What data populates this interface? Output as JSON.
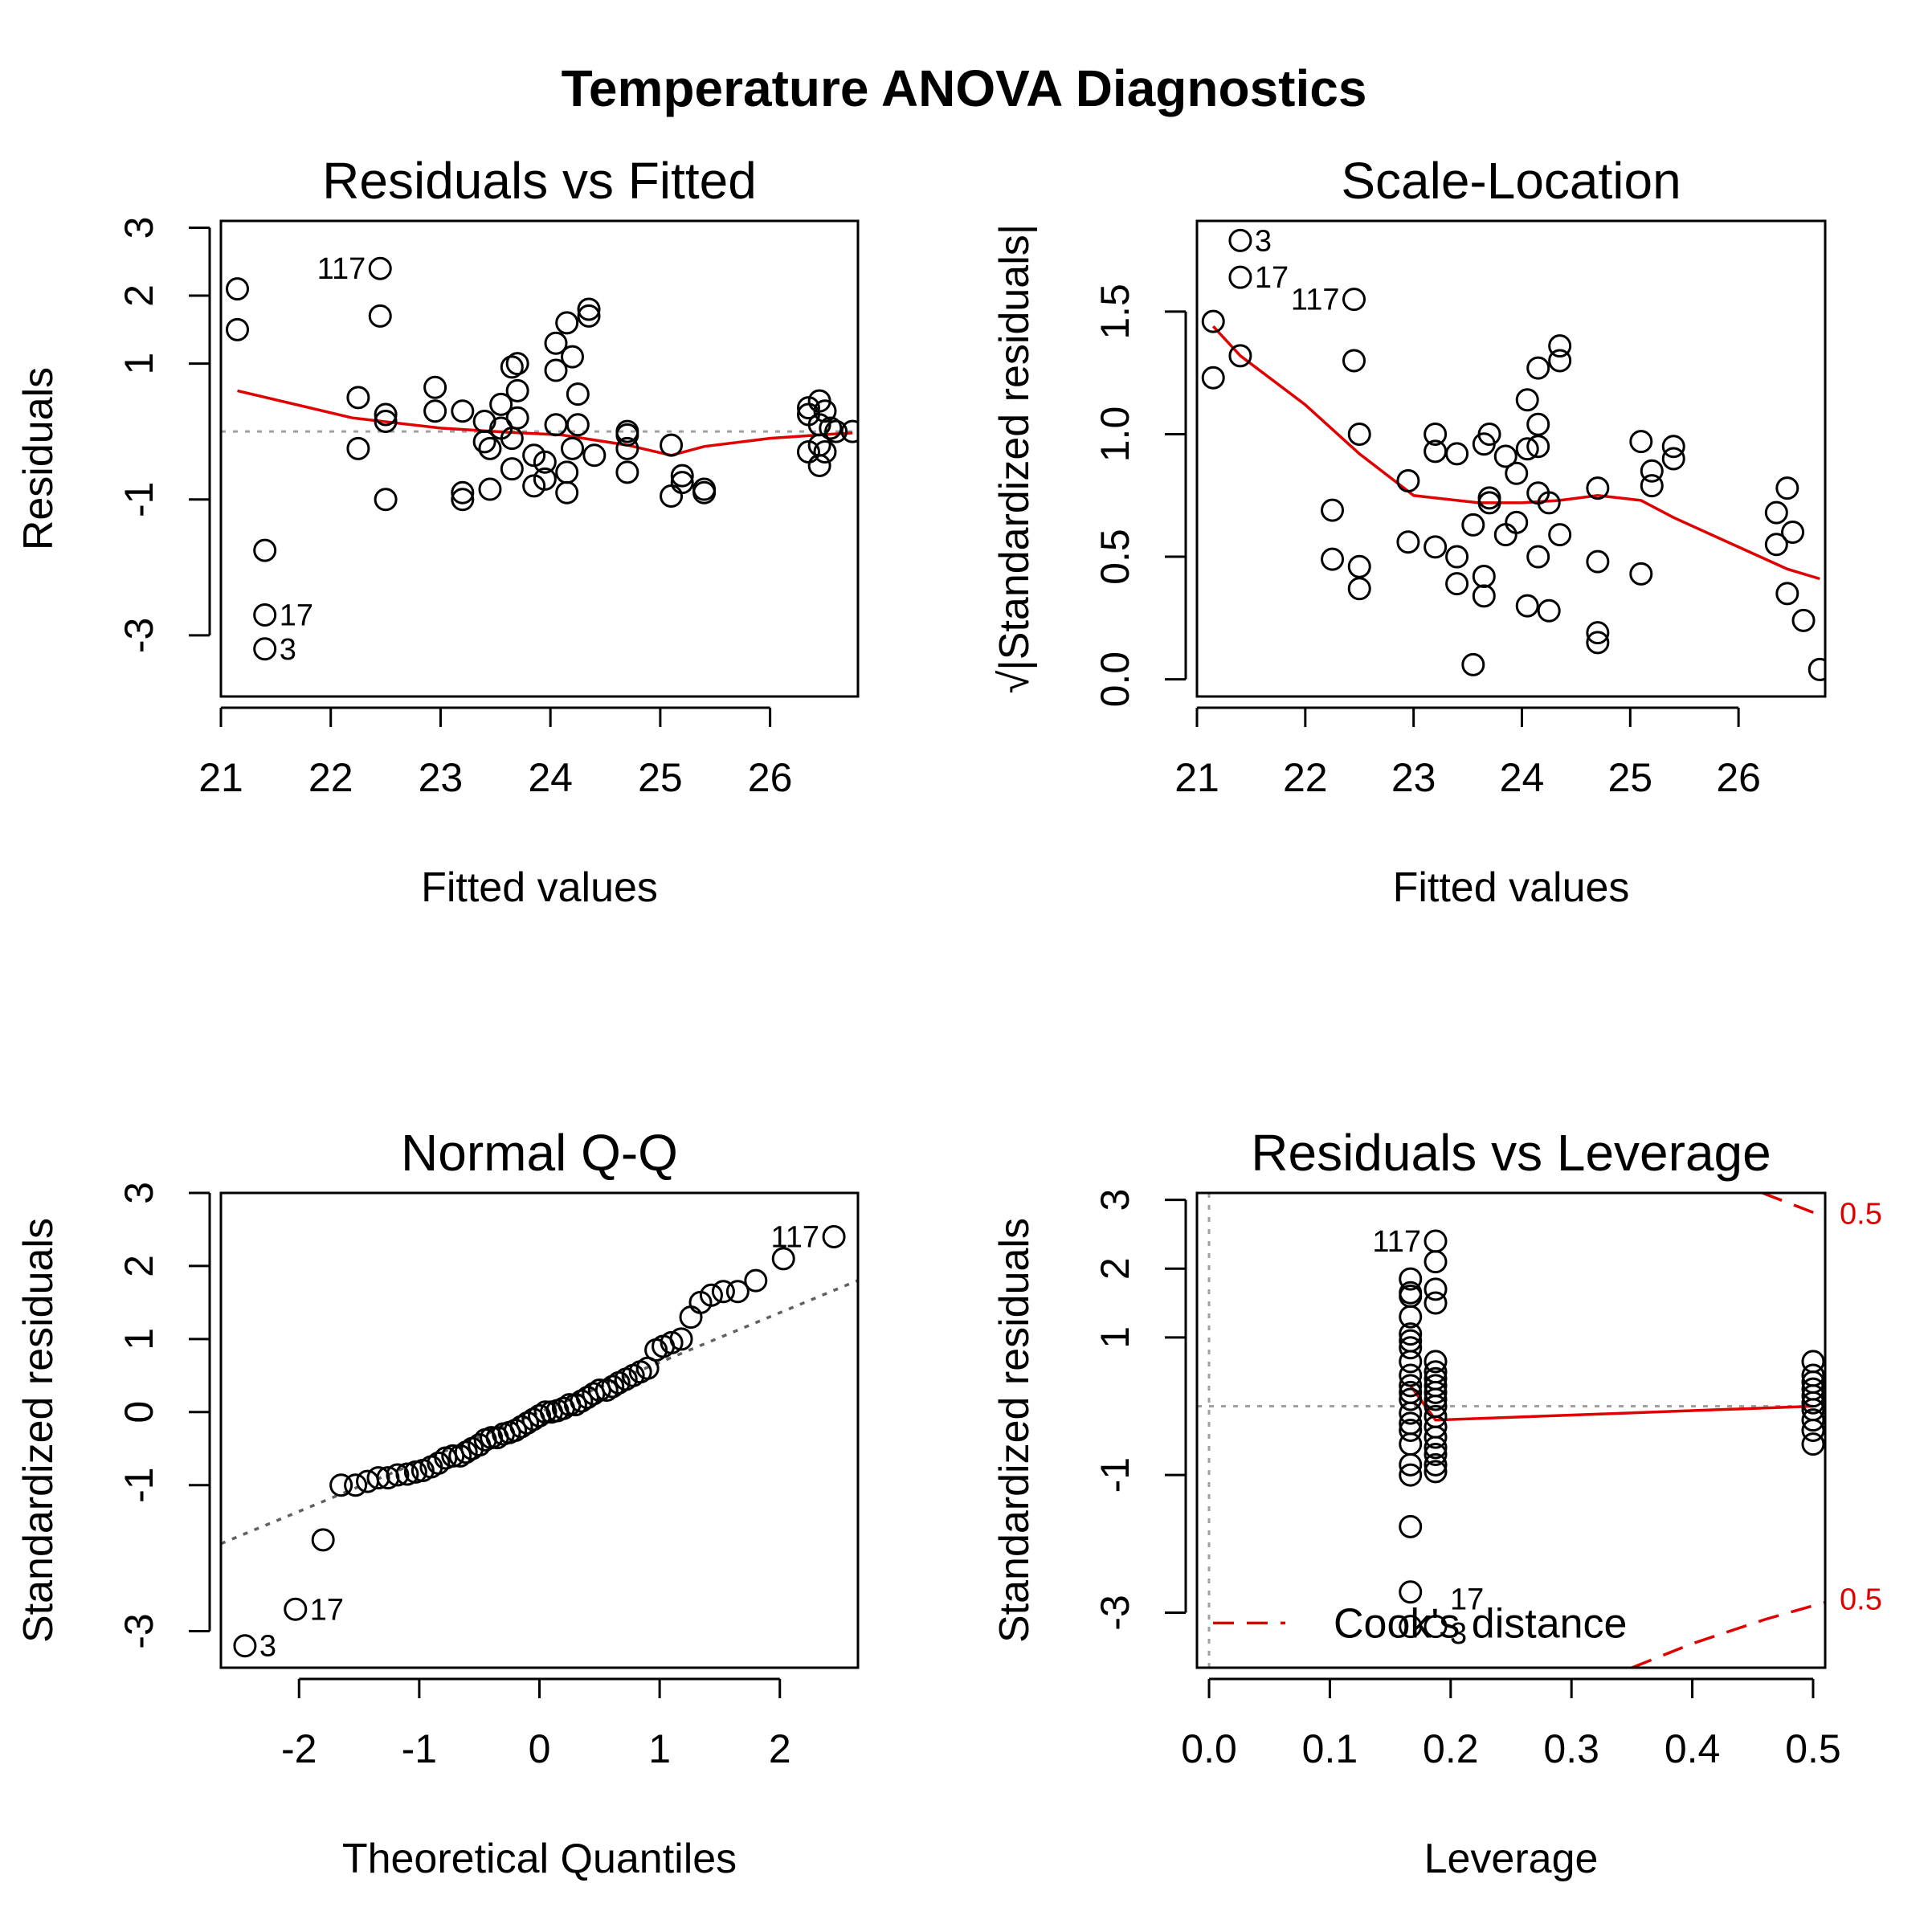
{
  "figure_title": "Temperature ANOVA Diagnostics",
  "colors": {
    "points": "#000000",
    "smoother": "#e00000",
    "reference": "#a0a0a0",
    "qq_line": "#606060",
    "cooks": "#e00000"
  },
  "chart_data": [
    {
      "id": "residuals-vs-fitted",
      "type": "scatter",
      "title": "Residuals vs Fitted",
      "xlabel": "Fitted values",
      "ylabel": "Residuals",
      "xlim": [
        21,
        26.8
      ],
      "ylim": [
        -3.9,
        3.1
      ],
      "xticks": [
        21,
        22,
        23,
        24,
        25,
        26
      ],
      "yticks": [
        -3,
        -1,
        1,
        2,
        3
      ],
      "reference_line": 0,
      "points": [
        [
          21.15,
          2.1
        ],
        [
          21.15,
          1.5
        ],
        [
          21.4,
          -1.75
        ],
        [
          21.4,
          -2.7
        ],
        [
          21.4,
          -3.2
        ],
        [
          22.45,
          2.4
        ],
        [
          22.45,
          1.7
        ],
        [
          22.25,
          0.5
        ],
        [
          22.25,
          -0.25
        ],
        [
          22.5,
          0.25
        ],
        [
          22.5,
          0.15
        ],
        [
          22.5,
          -1.0
        ],
        [
          22.95,
          0.65
        ],
        [
          22.95,
          0.3
        ],
        [
          23.2,
          0.3
        ],
        [
          23.2,
          -0.9
        ],
        [
          23.2,
          -1.0
        ],
        [
          23.4,
          0.15
        ],
        [
          23.4,
          -0.15
        ],
        [
          23.45,
          -0.25
        ],
        [
          23.45,
          -0.85
        ],
        [
          23.55,
          0.4
        ],
        [
          23.55,
          0.05
        ],
        [
          23.65,
          0.95
        ],
        [
          23.7,
          1.0
        ],
        [
          23.7,
          0.6
        ],
        [
          23.7,
          0.2
        ],
        [
          23.65,
          -0.1
        ],
        [
          23.65,
          -0.55
        ],
        [
          23.85,
          -0.35
        ],
        [
          23.85,
          -0.8
        ],
        [
          23.95,
          -0.45
        ],
        [
          23.95,
          -0.7
        ],
        [
          24.05,
          1.3
        ],
        [
          24.05,
          0.9
        ],
        [
          24.05,
          0.1
        ],
        [
          24.15,
          1.6
        ],
        [
          24.2,
          1.1
        ],
        [
          24.15,
          -0.6
        ],
        [
          24.15,
          -0.9
        ],
        [
          24.2,
          -0.25
        ],
        [
          24.25,
          0.55
        ],
        [
          24.25,
          0.1
        ],
        [
          24.35,
          1.8
        ],
        [
          24.35,
          1.7
        ],
        [
          24.4,
          -0.35
        ],
        [
          24.7,
          0.0
        ],
        [
          24.7,
          -0.05
        ],
        [
          24.7,
          -0.25
        ],
        [
          24.7,
          -0.6
        ],
        [
          25.1,
          -0.2
        ],
        [
          25.1,
          -0.95
        ],
        [
          25.2,
          -0.65
        ],
        [
          25.2,
          -0.75
        ],
        [
          25.4,
          -0.85
        ],
        [
          25.4,
          -0.9
        ],
        [
          26.35,
          0.35
        ],
        [
          26.35,
          0.25
        ],
        [
          26.35,
          -0.3
        ],
        [
          26.45,
          0.45
        ],
        [
          26.45,
          0.1
        ],
        [
          26.45,
          -0.2
        ],
        [
          26.5,
          0.3
        ],
        [
          26.45,
          -0.5
        ],
        [
          26.5,
          -0.3
        ],
        [
          26.55,
          0.05
        ],
        [
          26.6,
          0.0
        ],
        [
          26.75,
          0.0
        ]
      ],
      "smoother": [
        [
          21.15,
          0.6
        ],
        [
          22.2,
          0.2
        ],
        [
          23.0,
          0.05
        ],
        [
          23.6,
          -0.01
        ],
        [
          24.1,
          -0.05
        ],
        [
          24.7,
          -0.2
        ],
        [
          25.1,
          -0.35
        ],
        [
          25.4,
          -0.22
        ],
        [
          26.0,
          -0.1
        ],
        [
          26.45,
          -0.05
        ],
        [
          26.75,
          -0.02
        ]
      ],
      "labels": [
        {
          "text": "117",
          "x": 22.45,
          "y": 2.4,
          "side": "left"
        },
        {
          "text": "17",
          "x": 21.4,
          "y": -2.7,
          "side": "right"
        },
        {
          "text": "3",
          "x": 21.4,
          "y": -3.2,
          "side": "right"
        }
      ]
    },
    {
      "id": "scale-location",
      "type": "scatter",
      "title": "Scale-Location",
      "xlabel": "Fitted values",
      "ylabel": "√|Standardized residuals|",
      "xlim": [
        21,
        26.8
      ],
      "ylim": [
        -0.07,
        1.87
      ],
      "xticks": [
        21,
        22,
        23,
        24,
        25,
        26
      ],
      "yticks": [
        0.0,
        0.5,
        1.0,
        1.5
      ],
      "ytick_labels": [
        "0.0",
        "0.5",
        "1.0",
        "1.5"
      ],
      "points": [
        [
          21.15,
          1.46
        ],
        [
          21.15,
          1.23
        ],
        [
          21.4,
          1.32
        ],
        [
          21.4,
          1.64
        ],
        [
          21.4,
          1.79
        ],
        [
          22.45,
          1.55
        ],
        [
          22.45,
          1.3
        ],
        [
          22.25,
          0.69
        ],
        [
          22.25,
          0.49
        ],
        [
          22.5,
          1.0
        ],
        [
          22.5,
          0.46
        ],
        [
          22.5,
          0.37
        ],
        [
          22.95,
          0.81
        ],
        [
          22.95,
          0.56
        ],
        [
          23.2,
          1.0
        ],
        [
          23.2,
          0.93
        ],
        [
          23.2,
          0.54
        ],
        [
          23.4,
          0.92
        ],
        [
          23.4,
          0.5
        ],
        [
          23.4,
          0.39
        ],
        [
          23.55,
          0.63
        ],
        [
          23.55,
          0.06
        ],
        [
          23.65,
          0.96
        ],
        [
          23.7,
          1.0
        ],
        [
          23.7,
          0.74
        ],
        [
          23.7,
          0.72
        ],
        [
          23.65,
          0.42
        ],
        [
          23.65,
          0.34
        ],
        [
          23.85,
          0.91
        ],
        [
          23.85,
          0.59
        ],
        [
          23.95,
          0.84
        ],
        [
          23.95,
          0.64
        ],
        [
          24.05,
          1.14
        ],
        [
          24.05,
          0.94
        ],
        [
          24.05,
          0.3
        ],
        [
          24.15,
          1.27
        ],
        [
          24.15,
          1.04
        ],
        [
          24.15,
          0.95
        ],
        [
          24.15,
          0.76
        ],
        [
          24.15,
          0.5
        ],
        [
          24.25,
          0.72
        ],
        [
          24.25,
          0.28
        ],
        [
          24.35,
          1.36
        ],
        [
          24.35,
          1.3
        ],
        [
          24.35,
          0.59
        ],
        [
          24.7,
          0.78
        ],
        [
          24.7,
          0.48
        ],
        [
          24.7,
          0.19
        ],
        [
          24.7,
          0.15
        ],
        [
          25.1,
          0.97
        ],
        [
          25.1,
          0.43
        ],
        [
          25.2,
          0.85
        ],
        [
          25.2,
          0.79
        ],
        [
          25.4,
          0.95
        ],
        [
          25.4,
          0.9
        ],
        [
          26.35,
          0.68
        ],
        [
          26.35,
          0.55
        ],
        [
          26.45,
          0.78
        ],
        [
          26.45,
          0.35
        ],
        [
          26.5,
          0.6
        ],
        [
          26.6,
          0.24
        ],
        [
          26.75,
          0.04
        ]
      ],
      "smoother": [
        [
          21.15,
          1.44
        ],
        [
          21.4,
          1.32
        ],
        [
          22.0,
          1.12
        ],
        [
          22.5,
          0.92
        ],
        [
          23.0,
          0.75
        ],
        [
          23.6,
          0.72
        ],
        [
          24.0,
          0.72
        ],
        [
          24.35,
          0.73
        ],
        [
          24.7,
          0.75
        ],
        [
          25.1,
          0.73
        ],
        [
          25.4,
          0.66
        ],
        [
          26.0,
          0.54
        ],
        [
          26.45,
          0.45
        ],
        [
          26.75,
          0.41
        ]
      ],
      "labels": [
        {
          "text": "3",
          "x": 21.4,
          "y": 1.79,
          "side": "right"
        },
        {
          "text": "17",
          "x": 21.4,
          "y": 1.64,
          "side": "right"
        },
        {
          "text": "117",
          "x": 22.45,
          "y": 1.55,
          "side": "left"
        }
      ]
    },
    {
      "id": "normal-qq",
      "type": "scatter",
      "title": "Normal Q-Q",
      "xlabel": "Theoretical Quantiles",
      "ylabel": "Standardized residuals",
      "xlim": [
        -2.65,
        2.65
      ],
      "ylim": [
        -3.5,
        3.0
      ],
      "xticks": [
        -2,
        -1,
        0,
        1,
        2
      ],
      "yticks": [
        -3,
        -1,
        0,
        1,
        2,
        3
      ],
      "reference_line": {
        "slope": 0.68,
        "intercept": 0.0
      },
      "points": [
        [
          -2.45,
          -3.2
        ],
        [
          -2.03,
          -2.7
        ],
        [
          -1.8,
          -1.75
        ],
        [
          -1.65,
          -1.0
        ],
        [
          -1.53,
          -1.0
        ],
        [
          -1.43,
          -0.95
        ],
        [
          -1.34,
          -0.9
        ],
        [
          -1.26,
          -0.9
        ],
        [
          -1.18,
          -0.86
        ],
        [
          -1.1,
          -0.85
        ],
        [
          -1.03,
          -0.82
        ],
        [
          -0.97,
          -0.8
        ],
        [
          -0.9,
          -0.75
        ],
        [
          -0.84,
          -0.7
        ],
        [
          -0.78,
          -0.63
        ],
        [
          -0.72,
          -0.6
        ],
        [
          -0.66,
          -0.6
        ],
        [
          -0.61,
          -0.55
        ],
        [
          -0.56,
          -0.5
        ],
        [
          -0.5,
          -0.45
        ],
        [
          -0.45,
          -0.38
        ],
        [
          -0.4,
          -0.35
        ],
        [
          -0.35,
          -0.35
        ],
        [
          -0.3,
          -0.3
        ],
        [
          -0.25,
          -0.28
        ],
        [
          -0.2,
          -0.25
        ],
        [
          -0.15,
          -0.2
        ],
        [
          -0.1,
          -0.15
        ],
        [
          -0.05,
          -0.1
        ],
        [
          0.0,
          -0.05
        ],
        [
          0.05,
          0.0
        ],
        [
          0.1,
          0.0
        ],
        [
          0.15,
          0.02
        ],
        [
          0.2,
          0.05
        ],
        [
          0.25,
          0.1
        ],
        [
          0.3,
          0.1
        ],
        [
          0.35,
          0.15
        ],
        [
          0.4,
          0.2
        ],
        [
          0.45,
          0.25
        ],
        [
          0.5,
          0.3
        ],
        [
          0.56,
          0.3
        ],
        [
          0.61,
          0.35
        ],
        [
          0.66,
          0.4
        ],
        [
          0.72,
          0.45
        ],
        [
          0.78,
          0.5
        ],
        [
          0.84,
          0.55
        ],
        [
          0.9,
          0.6
        ],
        [
          0.97,
          0.85
        ],
        [
          1.03,
          0.9
        ],
        [
          1.1,
          0.95
        ],
        [
          1.18,
          1.0
        ],
        [
          1.26,
          1.3
        ],
        [
          1.34,
          1.5
        ],
        [
          1.43,
          1.6
        ],
        [
          1.53,
          1.65
        ],
        [
          1.65,
          1.65
        ],
        [
          1.8,
          1.8
        ],
        [
          2.03,
          2.1
        ],
        [
          2.45,
          2.4
        ]
      ],
      "labels": [
        {
          "text": "117",
          "x": 2.45,
          "y": 2.4,
          "side": "left"
        },
        {
          "text": "17",
          "x": -2.03,
          "y": -2.7,
          "side": "right"
        },
        {
          "text": "3",
          "x": -2.45,
          "y": -3.2,
          "side": "right"
        }
      ]
    },
    {
      "id": "residuals-vs-leverage",
      "type": "scatter",
      "title": "Residuals vs Leverage",
      "xlabel": "Leverage",
      "ylabel": "Standardized residuals",
      "xlim": [
        -0.01,
        0.51
      ],
      "ylim": [
        -3.8,
        3.1
      ],
      "xticks": [
        0.0,
        0.1,
        0.2,
        0.3,
        0.4,
        0.5
      ],
      "xtick_labels": [
        "0.0",
        "0.1",
        "0.2",
        "0.3",
        "0.4",
        "0.5"
      ],
      "yticks": [
        -3,
        -1,
        1,
        2,
        3
      ],
      "reference_line": 0,
      "points": [
        [
          0.1667,
          1.85
        ],
        [
          0.1667,
          1.65
        ],
        [
          0.1667,
          1.6
        ],
        [
          0.1667,
          1.3
        ],
        [
          0.1667,
          1.05
        ],
        [
          0.1667,
          0.95
        ],
        [
          0.1667,
          0.85
        ],
        [
          0.1667,
          0.65
        ],
        [
          0.1667,
          0.45
        ],
        [
          0.1667,
          0.3
        ],
        [
          0.1667,
          0.2
        ],
        [
          0.1667,
          0.1
        ],
        [
          0.1667,
          -0.1
        ],
        [
          0.1667,
          -0.25
        ],
        [
          0.1667,
          -0.35
        ],
        [
          0.1667,
          -0.55
        ],
        [
          0.1667,
          -0.85
        ],
        [
          0.1667,
          -1.0
        ],
        [
          0.1667,
          -1.75
        ],
        [
          0.1667,
          -2.7
        ],
        [
          0.1667,
          -3.2
        ],
        [
          0.1875,
          2.4
        ],
        [
          0.1875,
          2.1
        ],
        [
          0.1875,
          1.7
        ],
        [
          0.1875,
          1.5
        ],
        [
          0.1875,
          0.65
        ],
        [
          0.1875,
          0.5
        ],
        [
          0.1875,
          0.4
        ],
        [
          0.1875,
          0.3
        ],
        [
          0.1875,
          0.2
        ],
        [
          0.1875,
          0.1
        ],
        [
          0.1875,
          0.0
        ],
        [
          0.1875,
          -0.15
        ],
        [
          0.1875,
          -0.3
        ],
        [
          0.1875,
          -0.45
        ],
        [
          0.1875,
          -0.6
        ],
        [
          0.1875,
          -0.7
        ],
        [
          0.1875,
          -0.85
        ],
        [
          0.1875,
          -0.95
        ],
        [
          0.1875,
          -3.2
        ],
        [
          0.5,
          0.65
        ],
        [
          0.5,
          0.45
        ],
        [
          0.5,
          0.35
        ],
        [
          0.5,
          0.25
        ],
        [
          0.5,
          0.15
        ],
        [
          0.5,
          0.05
        ],
        [
          0.5,
          -0.05
        ],
        [
          0.5,
          -0.2
        ],
        [
          0.5,
          -0.35
        ],
        [
          0.5,
          -0.55
        ]
      ],
      "smoother": [
        [
          0.1667,
          0.3
        ],
        [
          0.1875,
          -0.2
        ],
        [
          0.5,
          0.0
        ]
      ],
      "cooks_contours": [
        {
          "points": [
            [
              0.458,
              3.1
            ],
            [
              0.51,
              2.75
            ]
          ]
        },
        {
          "points": [
            [
              0.35,
              -3.8
            ],
            [
              0.4,
              -3.45
            ],
            [
              0.46,
              -3.1
            ],
            [
              0.51,
              -2.85
            ]
          ]
        }
      ],
      "cooks_labels": [
        {
          "text": "0.5",
          "y": 2.8
        },
        {
          "text": "0.5",
          "y": -2.8
        }
      ],
      "legend": {
        "text": "Cook's distance",
        "position": "bottom-left"
      },
      "labels": [
        {
          "text": "117",
          "x": 0.1875,
          "y": 2.4,
          "side": "left"
        },
        {
          "text": "17",
          "x": 0.1875,
          "y": -2.8,
          "side": "right"
        },
        {
          "text": "3",
          "x": 0.1875,
          "y": -3.3,
          "side": "right"
        }
      ]
    }
  ]
}
